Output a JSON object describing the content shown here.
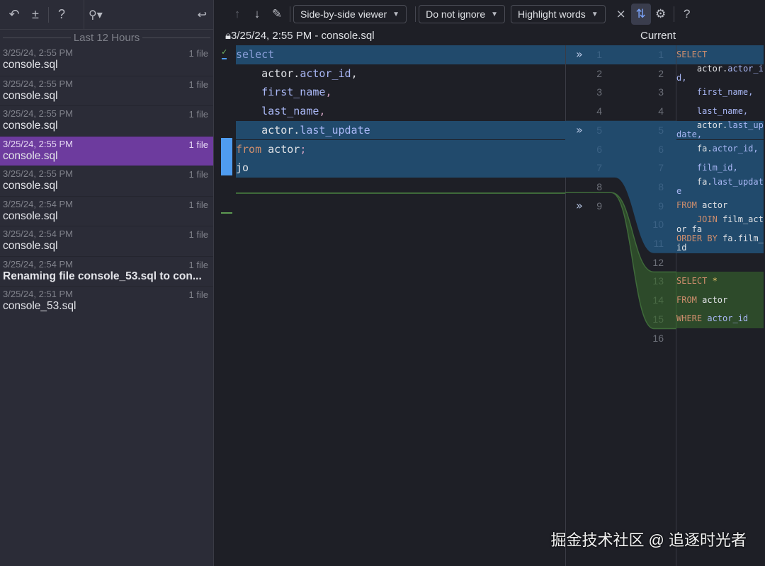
{
  "sidebar": {
    "group": "Last 12 Hours",
    "search_icon": "search-icon",
    "items": [
      {
        "time": "3/25/24, 2:55 PM",
        "count": "1 file",
        "name": "console.sql"
      },
      {
        "time": "3/25/24, 2:55 PM",
        "count": "1 file",
        "name": "console.sql"
      },
      {
        "time": "3/25/24, 2:55 PM",
        "count": "1 file",
        "name": "console.sql"
      },
      {
        "time": "3/25/24, 2:55 PM",
        "count": "1 file",
        "name": "console.sql",
        "selected": true
      },
      {
        "time": "3/25/24, 2:55 PM",
        "count": "1 file",
        "name": "console.sql"
      },
      {
        "time": "3/25/24, 2:54 PM",
        "count": "1 file",
        "name": "console.sql"
      },
      {
        "time": "3/25/24, 2:54 PM",
        "count": "1 file",
        "name": "console.sql"
      },
      {
        "time": "3/25/24, 2:54 PM",
        "count": "1 file",
        "name": "Renaming file console_53.sql to con...",
        "bold": true
      },
      {
        "time": "3/25/24, 2:51 PM",
        "count": "1 file",
        "name": "console_53.sql"
      }
    ]
  },
  "toolbar": {
    "viewer": "Side-by-side viewer",
    "ignore": "Do not ignore",
    "highlight": "Highlight words"
  },
  "diff": {
    "left_title": "3/25/24, 2:55 PM - console.sql",
    "right_title": "Current",
    "colors": {
      "changed": "#214a6c",
      "inserted": "#2d4a2a",
      "selected": "#6d3b9e"
    },
    "left_lines": [
      [
        [
          "kw2",
          "select"
        ]
      ],
      [
        [
          "pl",
          "    actor."
        ],
        [
          "fld",
          "actor_id"
        ],
        [
          "pl",
          ","
        ]
      ],
      [
        [
          "fld",
          "    first_name"
        ],
        [
          "pu",
          ","
        ]
      ],
      [
        [
          "fld",
          "    last_name"
        ],
        [
          "pu",
          ","
        ]
      ],
      [
        [
          "pl",
          "    actor."
        ],
        [
          "fld",
          "last_update"
        ]
      ],
      [
        [
          "kw",
          "from"
        ],
        [
          "pl",
          " actor"
        ],
        [
          "pu",
          ";"
        ]
      ],
      [
        [
          "pl",
          "jo"
        ]
      ],
      [],
      []
    ],
    "right_lines": [
      [
        [
          "kw",
          "SELECT"
        ]
      ],
      [
        [
          "pl",
          "    actor."
        ],
        [
          "fld",
          "actor_id,"
        ]
      ],
      [
        [
          "fld",
          "    first_name,"
        ]
      ],
      [
        [
          "fld",
          "    last_name,"
        ]
      ],
      [
        [
          "pl",
          "    actor."
        ],
        [
          "fld",
          "last_update,"
        ]
      ],
      [
        [
          "pl",
          "    fa."
        ],
        [
          "fld",
          "actor_id,"
        ]
      ],
      [
        [
          "fld",
          "    film_id,"
        ]
      ],
      [
        [
          "pl",
          "    fa."
        ],
        [
          "fld",
          "last_update"
        ]
      ],
      [
        [
          "kw",
          "FROM"
        ],
        [
          "pl",
          " actor"
        ]
      ],
      [
        [
          "kw",
          "    JOIN"
        ],
        [
          "pl",
          " film_actor fa"
        ]
      ],
      [
        [
          "kw",
          "ORDER BY"
        ],
        [
          "pl",
          " fa.film_id"
        ]
      ],
      [],
      [
        [
          "kw",
          "SELECT"
        ],
        [
          "star",
          " *"
        ]
      ],
      [
        [
          "kw",
          "FROM"
        ],
        [
          "pl",
          " actor"
        ]
      ],
      [
        [
          "kw",
          "WHERE"
        ],
        [
          "fld",
          " actor_id"
        ]
      ],
      []
    ],
    "left_numbers": [
      "1",
      "2",
      "3",
      "4",
      "5",
      "6",
      "7",
      "8",
      "9"
    ],
    "right_numbers": [
      "1",
      "2",
      "3",
      "4",
      "5",
      "6",
      "7",
      "8",
      "9",
      "10",
      "11",
      "12",
      "13",
      "14",
      "15",
      "16"
    ]
  },
  "watermark": "掘金技术社区 @ 追逐时光者"
}
